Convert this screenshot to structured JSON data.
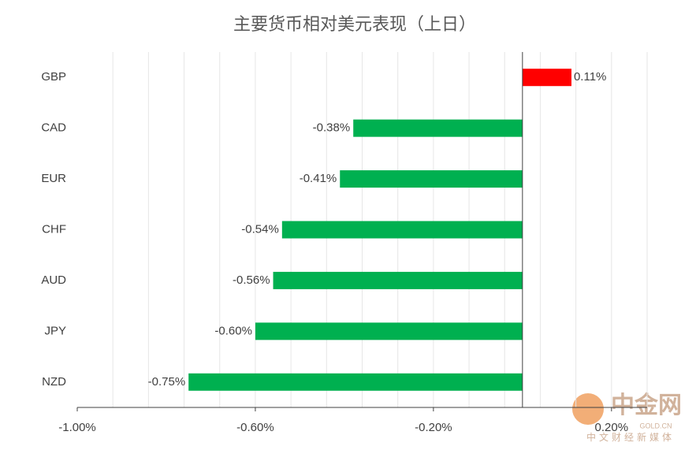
{
  "chart_data": {
    "type": "hbar",
    "title": "主要货币相对美元表现（上日）",
    "categories": [
      "GBP",
      "CAD",
      "EUR",
      "CHF",
      "AUD",
      "JPY",
      "NZD"
    ],
    "values": [
      0.11,
      -0.38,
      -0.41,
      -0.54,
      -0.56,
      -0.6,
      -0.75
    ],
    "value_labels": [
      "0.11%",
      "-0.38%",
      "-0.41%",
      "-0.54%",
      "-0.56%",
      "-0.60%",
      "-0.75%"
    ],
    "colors": [
      "#ff0000",
      "#00b050",
      "#00b050",
      "#00b050",
      "#00b050",
      "#00b050",
      "#00b050"
    ],
    "xlim": [
      -1.0,
      0.28
    ],
    "xticks": [
      {
        "value": -1.0,
        "label": "-1.00%"
      },
      {
        "value": -0.6,
        "label": "-0.60%"
      },
      {
        "value": -0.2,
        "label": "-0.20%"
      },
      {
        "value": 0.2,
        "label": "0.20%"
      }
    ],
    "xgrid": [
      -0.92,
      -0.84,
      -0.76,
      -0.68,
      -0.6,
      -0.52,
      -0.44,
      -0.36,
      -0.28,
      -0.2,
      -0.12,
      -0.04,
      0.04,
      0.12,
      0.2,
      0.28
    ],
    "grid": true
  },
  "watermark": {
    "name": "中金网",
    "site": "GOLD.CN",
    "slogan": "中文财经新媒体"
  }
}
